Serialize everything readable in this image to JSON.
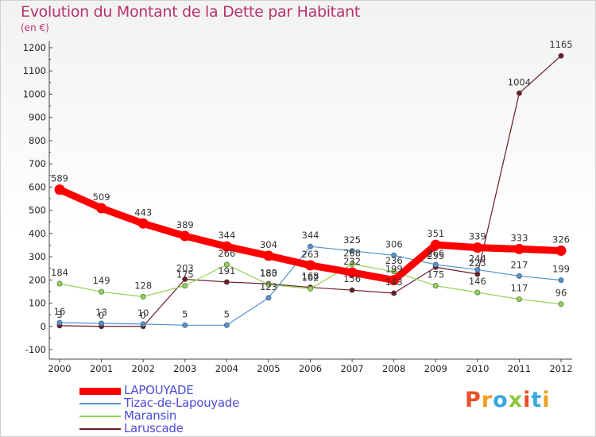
{
  "title": "Evolution du Montant de la Dette par Habitant",
  "unit_label": "(en €)",
  "logo": "Proxiti",
  "chart_data": {
    "type": "line",
    "x": [
      "2000",
      "2001",
      "2002",
      "2003",
      "2004",
      "2005",
      "2006",
      "2007",
      "2008",
      "2009",
      "2010",
      "2011",
      "2012"
    ],
    "ylim": [
      -100,
      1200
    ],
    "yticks": [
      -100,
      0,
      100,
      200,
      300,
      400,
      500,
      600,
      700,
      800,
      900,
      1000,
      1100,
      1200
    ],
    "grid": false,
    "legend_position": "bottom-left",
    "series": [
      {
        "name": "LAPOUYADE",
        "color": "#ff0000",
        "values": [
          589,
          509,
          443,
          389,
          344,
          304,
          263,
          232,
          199,
          351,
          339,
          333,
          326
        ]
      },
      {
        "name": "Tizac-de-Lapouyade",
        "color": "#4f93d0",
        "values": [
          16,
          13,
          10,
          5,
          5,
          123,
          344,
          325,
          306,
          266,
          244,
          217,
          199
        ]
      },
      {
        "name": "Maransin",
        "color": "#8fd34f",
        "values": [
          184,
          149,
          128,
          175,
          266,
          180,
          162,
          268,
          236,
          175,
          146,
          117,
          96
        ]
      },
      {
        "name": "Laruscade",
        "color": "#6b1c24",
        "values": [
          3,
          0,
          0,
          203,
          191,
          183,
          168,
          156,
          143,
          255,
          225,
          1004,
          1165
        ]
      }
    ]
  }
}
